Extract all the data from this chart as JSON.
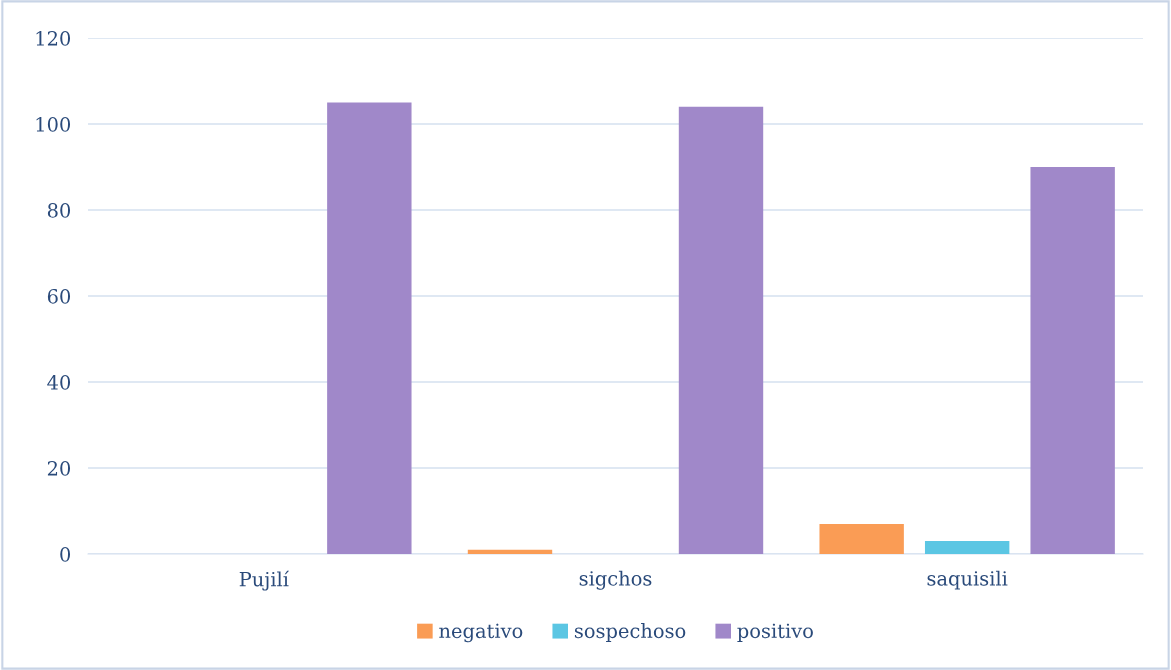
{
  "chart_data": {
    "type": "bar",
    "categories": [
      "Pujilí",
      "sigchos",
      "saquisili"
    ],
    "series": [
      {
        "name": "negativo",
        "color": "#fa9c55",
        "values": [
          0,
          1,
          7
        ]
      },
      {
        "name": "sospechoso",
        "color": "#5bc6e3",
        "values": [
          0,
          0,
          3
        ]
      },
      {
        "name": "positivo",
        "color": "#a088c9",
        "values": [
          105,
          104,
          90
        ]
      }
    ],
    "ylim": [
      0,
      120
    ],
    "yticks": [
      0,
      20,
      40,
      60,
      80,
      100,
      120
    ],
    "grid": "y",
    "legend": "bottom"
  }
}
